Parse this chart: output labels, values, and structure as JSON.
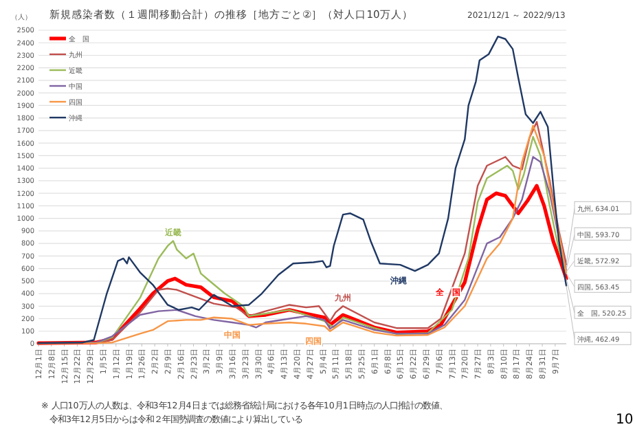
{
  "chart_data": {
    "type": "line",
    "title": "新規感染者数（１週間移動合計）の推移［地方ごと②］（対人口10万人）",
    "subtitle": "2021/12/1 ～ 2022/9/13",
    "ylabel": "（人）",
    "xlim": [
      "2021-12-01",
      "2022-09-13"
    ],
    "xticks": [
      {
        "value": "2021-12-01",
        "label": "12月1日"
      },
      {
        "value": "2021-12-08",
        "label": "12月8日"
      },
      {
        "value": "2021-12-15",
        "label": "12月15日"
      },
      {
        "value": "2021-12-22",
        "label": "12月22日"
      },
      {
        "value": "2021-12-29",
        "label": "12月29日"
      },
      {
        "value": "2022-01-05",
        "label": "1月5日"
      },
      {
        "value": "2022-01-12",
        "label": "1月12日"
      },
      {
        "value": "2022-01-19",
        "label": "1月19日"
      },
      {
        "value": "2022-01-26",
        "label": "1月26日"
      },
      {
        "value": "2022-02-02",
        "label": "2月2日"
      },
      {
        "value": "2022-02-09",
        "label": "2月9日"
      },
      {
        "value": "2022-02-16",
        "label": "2月16日"
      },
      {
        "value": "2022-02-23",
        "label": "2月23日"
      },
      {
        "value": "2022-03-02",
        "label": "3月2日"
      },
      {
        "value": "2022-03-09",
        "label": "3月9日"
      },
      {
        "value": "2022-03-16",
        "label": "3月16日"
      },
      {
        "value": "2022-03-23",
        "label": "3月23日"
      },
      {
        "value": "2022-03-30",
        "label": "3月30日"
      },
      {
        "value": "2022-04-06",
        "label": "4月6日"
      },
      {
        "value": "2022-04-13",
        "label": "4月13日"
      },
      {
        "value": "2022-04-20",
        "label": "4月20日"
      },
      {
        "value": "2022-04-27",
        "label": "4月27日"
      },
      {
        "value": "2022-05-04",
        "label": "5月4日"
      },
      {
        "value": "2022-05-11",
        "label": "5月11日"
      },
      {
        "value": "2022-05-18",
        "label": "5月18日"
      },
      {
        "value": "2022-05-25",
        "label": "5月25日"
      },
      {
        "value": "2022-06-01",
        "label": "6月1日"
      },
      {
        "value": "2022-06-08",
        "label": "6月8日"
      },
      {
        "value": "2022-06-15",
        "label": "6月15日"
      },
      {
        "value": "2022-06-22",
        "label": "6月22日"
      },
      {
        "value": "2022-06-29",
        "label": "6月29日"
      },
      {
        "value": "2022-07-06",
        "label": "7月6日"
      },
      {
        "value": "2022-07-13",
        "label": "7月13日"
      },
      {
        "value": "2022-07-20",
        "label": "7月20日"
      },
      {
        "value": "2022-07-27",
        "label": "7月27日"
      },
      {
        "value": "2022-08-03",
        "label": "8月3日"
      },
      {
        "value": "2022-08-10",
        "label": "8月10日"
      },
      {
        "value": "2022-08-17",
        "label": "8月17日"
      },
      {
        "value": "2022-08-24",
        "label": "8月24日"
      },
      {
        "value": "2022-08-31",
        "label": "8月31日"
      },
      {
        "value": "2022-09-07",
        "label": "9月7日"
      }
    ],
    "ylim": [
      0,
      2500
    ],
    "yticks": [
      0,
      100,
      200,
      300,
      400,
      500,
      600,
      700,
      800,
      900,
      1000,
      1100,
      1200,
      1300,
      1400,
      1500,
      1600,
      1700,
      1800,
      1900,
      2000,
      2100,
      2200,
      2300,
      2400,
      2500
    ],
    "grid": "y",
    "legend": "top left",
    "marker": "none",
    "line_style": "solid",
    "series": [
      {
        "name": "全　国",
        "color": "#ff0000",
        "x": [
          "2021-12-01",
          "2022-01-01",
          "2022-01-10",
          "2022-01-25",
          "2022-02-01",
          "2022-02-09",
          "2022-02-13",
          "2022-02-19",
          "2022-02-27",
          "2022-03-06",
          "2022-03-16",
          "2022-03-25",
          "2022-04-03",
          "2022-04-16",
          "2022-04-25",
          "2022-05-05",
          "2022-05-08",
          "2022-05-15",
          "2022-06-01",
          "2022-06-13",
          "2022-06-30",
          "2022-07-07",
          "2022-07-20",
          "2022-07-27",
          "2022-08-01",
          "2022-08-06",
          "2022-08-11",
          "2022-08-15",
          "2022-08-18",
          "2022-08-23",
          "2022-08-28",
          "2022-09-01",
          "2022-09-06",
          "2022-09-10",
          "2022-09-13"
        ],
        "values": [
          5,
          10,
          40,
          280,
          400,
          500,
          520,
          470,
          450,
          370,
          340,
          220,
          230,
          270,
          240,
          210,
          150,
          230,
          130,
          90,
          100,
          150,
          490,
          910,
          1150,
          1200,
          1180,
          1100,
          1040,
          1140,
          1260,
          1100,
          815,
          650,
          520.25
        ],
        "value_labels": [
          null,
          null,
          null,
          null,
          null,
          null,
          null,
          null,
          null,
          null,
          null,
          null,
          null,
          null,
          null,
          null,
          null,
          null,
          null,
          null,
          null,
          null,
          null,
          null,
          null,
          null,
          null,
          null,
          null,
          null,
          null,
          null,
          null,
          null,
          "全　国, 520.25"
        ]
      },
      {
        "name": "九州",
        "color": "#c0504d",
        "x": [
          "2021-12-01",
          "2022-01-01",
          "2022-01-10",
          "2022-01-25",
          "2022-02-04",
          "2022-02-09",
          "2022-02-14",
          "2022-02-23",
          "2022-03-06",
          "2022-03-18",
          "2022-03-25",
          "2022-04-03",
          "2022-04-16",
          "2022-04-25",
          "2022-05-02",
          "2022-05-08",
          "2022-05-11",
          "2022-05-15",
          "2022-06-01",
          "2022-06-13",
          "2022-06-30",
          "2022-07-07",
          "2022-07-20",
          "2022-07-27",
          "2022-08-01",
          "2022-08-11",
          "2022-08-15",
          "2022-08-20",
          "2022-08-24",
          "2022-08-28",
          "2022-09-04",
          "2022-09-09",
          "2022-09-13"
        ],
        "values": [
          5,
          8,
          30,
          250,
          430,
          440,
          430,
          380,
          320,
          290,
          220,
          260,
          310,
          290,
          300,
          180,
          250,
          300,
          170,
          125,
          125,
          200,
          720,
          1260,
          1420,
          1490,
          1420,
          1390,
          1640,
          1770,
          1300,
          900,
          634.01
        ],
        "value_labels": [
          null,
          null,
          null,
          null,
          null,
          null,
          null,
          null,
          null,
          null,
          null,
          null,
          null,
          null,
          null,
          null,
          null,
          null,
          null,
          null,
          null,
          null,
          null,
          null,
          null,
          null,
          null,
          null,
          null,
          null,
          null,
          null,
          "九州, 634.01"
        ]
      },
      {
        "name": "近畿",
        "color": "#9bbb59",
        "x": [
          "2021-12-01",
          "2022-01-01",
          "2022-01-10",
          "2022-01-25",
          "2022-02-04",
          "2022-02-09",
          "2022-02-12",
          "2022-02-14",
          "2022-02-19",
          "2022-02-23",
          "2022-02-27",
          "2022-03-03",
          "2022-03-12",
          "2022-03-22",
          "2022-03-25",
          "2022-04-03",
          "2022-04-16",
          "2022-04-25",
          "2022-05-05",
          "2022-05-10",
          "2022-05-15",
          "2022-06-01",
          "2022-06-13",
          "2022-06-30",
          "2022-07-13",
          "2022-07-22",
          "2022-07-27",
          "2022-08-01",
          "2022-08-12",
          "2022-08-15",
          "2022-08-18",
          "2022-08-21",
          "2022-08-26",
          "2022-08-30",
          "2022-09-04",
          "2022-09-09",
          "2022-09-13"
        ],
        "values": [
          5,
          8,
          50,
          365,
          680,
          780,
          820,
          750,
          680,
          720,
          560,
          510,
          400,
          300,
          220,
          240,
          270,
          230,
          180,
          130,
          210,
          125,
          77,
          85,
          270,
          680,
          1130,
          1320,
          1420,
          1380,
          1230,
          1350,
          1650,
          1500,
          1100,
          750,
          572.92
        ],
        "value_labels": [
          null,
          null,
          null,
          null,
          null,
          null,
          null,
          null,
          null,
          null,
          null,
          null,
          null,
          null,
          null,
          null,
          null,
          null,
          null,
          null,
          null,
          null,
          null,
          null,
          null,
          null,
          null,
          null,
          null,
          null,
          null,
          null,
          null,
          null,
          null,
          null,
          "近畿, 572.92"
        ]
      },
      {
        "name": "中国",
        "color": "#8064a2",
        "x": [
          "2021-12-01",
          "2022-01-01",
          "2022-01-10",
          "2022-01-25",
          "2022-02-04",
          "2022-02-14",
          "2022-02-24",
          "2022-03-06",
          "2022-03-16",
          "2022-03-25",
          "2022-03-29",
          "2022-04-03",
          "2022-04-16",
          "2022-04-25",
          "2022-05-05",
          "2022-05-08",
          "2022-05-15",
          "2022-06-01",
          "2022-06-13",
          "2022-06-30",
          "2022-07-09",
          "2022-07-20",
          "2022-08-01",
          "2022-08-08",
          "2022-08-15",
          "2022-08-20",
          "2022-08-26",
          "2022-08-30",
          "2022-09-04",
          "2022-09-09",
          "2022-09-13"
        ],
        "values": [
          5,
          8,
          60,
          230,
          260,
          270,
          220,
          190,
          170,
          150,
          130,
          170,
          200,
          220,
          190,
          120,
          190,
          110,
          80,
          80,
          150,
          350,
          800,
          850,
          1000,
          1150,
          1490,
          1450,
          1200,
          850,
          593.7
        ],
        "value_labels": [
          null,
          null,
          null,
          null,
          null,
          null,
          null,
          null,
          null,
          null,
          null,
          null,
          null,
          null,
          null,
          null,
          null,
          null,
          null,
          null,
          null,
          null,
          null,
          null,
          null,
          null,
          null,
          null,
          null,
          null,
          "中国, 593.70"
        ]
      },
      {
        "name": "四国",
        "color": "#f79646",
        "x": [
          "2021-12-01",
          "2022-01-01",
          "2022-01-10",
          "2022-01-25",
          "2022-02-01",
          "2022-02-09",
          "2022-02-19",
          "2022-02-27",
          "2022-03-06",
          "2022-03-16",
          "2022-03-25",
          "2022-04-03",
          "2022-04-16",
          "2022-04-25",
          "2022-05-05",
          "2022-05-08",
          "2022-05-15",
          "2022-06-01",
          "2022-06-13",
          "2022-06-30",
          "2022-07-09",
          "2022-07-20",
          "2022-08-01",
          "2022-08-08",
          "2022-08-15",
          "2022-08-20",
          "2022-08-26",
          "2022-09-01",
          "2022-09-06",
          "2022-09-10",
          "2022-09-13"
        ],
        "values": [
          3,
          5,
          10,
          80,
          110,
          180,
          190,
          190,
          210,
          200,
          150,
          160,
          170,
          160,
          140,
          100,
          170,
          90,
          65,
          70,
          130,
          300,
          680,
          800,
          1000,
          1450,
          1740,
          1500,
          1100,
          800,
          563.45
        ],
        "value_labels": [
          null,
          null,
          null,
          null,
          null,
          null,
          null,
          null,
          null,
          null,
          null,
          null,
          null,
          null,
          null,
          null,
          null,
          null,
          null,
          null,
          null,
          null,
          null,
          null,
          null,
          null,
          null,
          null,
          null,
          null,
          "四国, 563.45"
        ]
      },
      {
        "name": "沖縄",
        "color": "#1f3864",
        "x": [
          "2021-12-01",
          "2021-12-25",
          "2021-12-31",
          "2022-01-07",
          "2022-01-13",
          "2022-01-16",
          "2022-01-18",
          "2022-01-19",
          "2022-01-25",
          "2022-02-01",
          "2022-02-09",
          "2022-02-15",
          "2022-02-22",
          "2022-02-26",
          "2022-03-06",
          "2022-03-16",
          "2022-03-25",
          "2022-04-01",
          "2022-04-10",
          "2022-04-18",
          "2022-04-29",
          "2022-05-04",
          "2022-05-06",
          "2022-05-08",
          "2022-05-10",
          "2022-05-15",
          "2022-05-19",
          "2022-05-26",
          "2022-05-30",
          "2022-06-04",
          "2022-06-15",
          "2022-06-23",
          "2022-06-30",
          "2022-07-06",
          "2022-07-11",
          "2022-07-15",
          "2022-07-20",
          "2022-07-22",
          "2022-07-26",
          "2022-07-28",
          "2022-08-02",
          "2022-08-07",
          "2022-08-11",
          "2022-08-15",
          "2022-08-18",
          "2022-08-22",
          "2022-08-26",
          "2022-08-30",
          "2022-09-03",
          "2022-09-06",
          "2022-09-09",
          "2022-09-13"
        ],
        "values": [
          5,
          10,
          30,
          400,
          660,
          680,
          640,
          690,
          570,
          470,
          310,
          270,
          290,
          270,
          390,
          300,
          310,
          400,
          550,
          640,
          650,
          660,
          610,
          620,
          780,
          1030,
          1040,
          990,
          820,
          640,
          630,
          580,
          630,
          720,
          1000,
          1400,
          1630,
          1900,
          2090,
          2260,
          2310,
          2450,
          2430,
          2350,
          2120,
          1830,
          1760,
          1850,
          1730,
          1250,
          820,
          462.49
        ],
        "value_labels": [
          null,
          null,
          null,
          null,
          null,
          null,
          null,
          null,
          null,
          null,
          null,
          null,
          null,
          null,
          null,
          null,
          null,
          null,
          null,
          null,
          null,
          null,
          null,
          null,
          null,
          null,
          null,
          null,
          null,
          null,
          null,
          null,
          null,
          null,
          null,
          null,
          null,
          null,
          null,
          null,
          null,
          null,
          null,
          null,
          null,
          null,
          null,
          null,
          null,
          null,
          null,
          "沖縄, 462.49"
        ]
      }
    ],
    "annotations": [
      {
        "text": "近畿",
        "x": "2022-02-12",
        "y": 820
      },
      {
        "text": "中国",
        "x": "2022-03-25",
        "y": 150
      },
      {
        "text": "四国",
        "x": "2022-05-08",
        "y": 100
      },
      {
        "text": "九州",
        "x": "2022-05-15",
        "y": 300
      },
      {
        "text": "沖縄",
        "x": "2022-06-23",
        "y": 580
      },
      {
        "text": "全　国",
        "x": "2022-07-20",
        "y": 490
      },
      "※ 人口10万人の人数は、令和3年12月4日までは総務省統計局における各年10月1日時点の人口推計の数値、",
      "令和3年12月5日からは令和２年国勢調査の数値により算出している",
      "10"
    ]
  }
}
